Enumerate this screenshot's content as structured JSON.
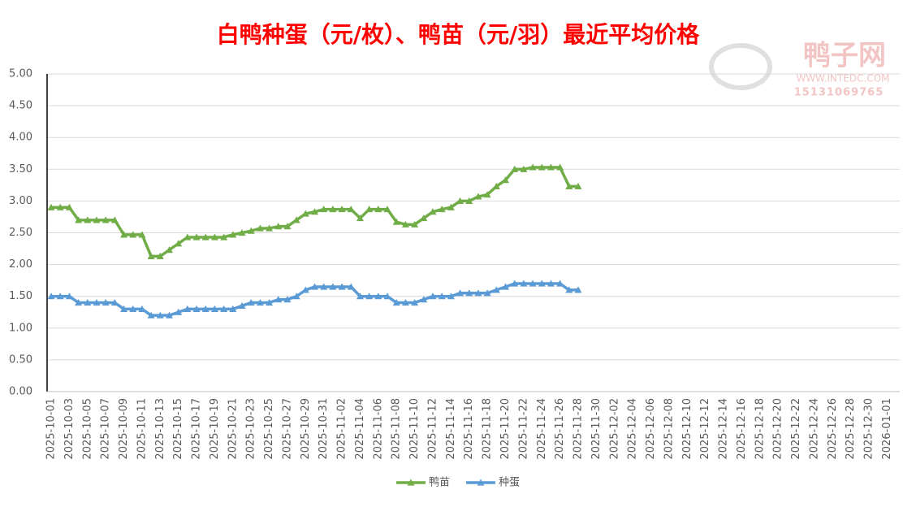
{
  "chart_data": {
    "type": "line",
    "title": "白鸭种蛋（元/枚）、鸭苗（元/羽）最近平均价格",
    "watermark": {
      "brand": "鸭子网",
      "site": "WWW.INTEDC.COM",
      "phone": "15131069765"
    },
    "categories": [
      "2025-10-01",
      null,
      "2025-10-03",
      null,
      "2025-10-05",
      null,
      "2025-10-07",
      null,
      "2025-10-09",
      null,
      "2025-10-11",
      null,
      "2025-10-13",
      null,
      "2025-10-15",
      null,
      "2025-10-17",
      null,
      "2025-10-19",
      null,
      "2025-10-21",
      null,
      "2025-10-23",
      null,
      "2025-10-25",
      null,
      "2025-10-27",
      null,
      "2025-10-29",
      null,
      "2025-10-31",
      null,
      "2025-11-02",
      null,
      "2025-11-04",
      null,
      "2025-11-06",
      null,
      "2025-11-08",
      null,
      "2025-11-10",
      null,
      "2025-11-12",
      null,
      "2025-11-14",
      null,
      "2025-11-16",
      null,
      "2025-11-18",
      null,
      "2025-11-20",
      null,
      "2025-11-22",
      null,
      "2025-11-24",
      null,
      "2025-11-26",
      null,
      "2025-11-28",
      null,
      "2025-11-30",
      null,
      "2025-12-02",
      null,
      "2025-12-04",
      null,
      "2025-12-06",
      null,
      "2025-12-08",
      null,
      "2025-12-10",
      null,
      "2025-12-12",
      null,
      "2025-12-14",
      null,
      "2025-12-16",
      null,
      "2025-12-18",
      null,
      "2025-12-20",
      null,
      "2025-12-22",
      null,
      "2025-12-24",
      null,
      "2025-12-26",
      null,
      "2025-12-28",
      null,
      "2025-12-30",
      null,
      "2026-01-01"
    ],
    "series": [
      {
        "name": "鸭苗",
        "color": "#70ad47",
        "values": [
          2.9,
          2.9,
          2.9,
          2.7,
          2.7,
          2.7,
          2.7,
          2.7,
          2.47,
          2.47,
          2.47,
          2.13,
          2.13,
          2.23,
          2.33,
          2.43,
          2.43,
          2.43,
          2.43,
          2.43,
          2.47,
          2.5,
          2.53,
          2.57,
          2.57,
          2.6,
          2.6,
          2.7,
          2.8,
          2.83,
          2.87,
          2.87,
          2.87,
          2.87,
          2.73,
          2.87,
          2.87,
          2.87,
          2.67,
          2.63,
          2.63,
          2.73,
          2.83,
          2.87,
          2.9,
          3.0,
          3.0,
          3.07,
          3.1,
          3.23,
          3.33,
          3.5,
          3.5,
          3.53,
          3.53,
          3.53,
          3.53,
          3.23,
          3.23,
          null,
          null,
          null,
          null,
          null,
          null,
          null,
          null,
          null,
          null,
          null,
          null,
          null,
          null,
          null,
          null,
          null,
          null,
          null,
          null,
          null,
          null,
          null,
          null,
          null,
          null,
          null,
          null,
          null,
          null,
          null,
          null,
          null,
          null
        ]
      },
      {
        "name": "种蛋",
        "color": "#5b9bd5",
        "values": [
          1.5,
          1.5,
          1.5,
          1.4,
          1.4,
          1.4,
          1.4,
          1.4,
          1.3,
          1.3,
          1.3,
          1.2,
          1.2,
          1.2,
          1.25,
          1.3,
          1.3,
          1.3,
          1.3,
          1.3,
          1.3,
          1.35,
          1.4,
          1.4,
          1.4,
          1.45,
          1.45,
          1.5,
          1.6,
          1.65,
          1.65,
          1.65,
          1.65,
          1.65,
          1.5,
          1.5,
          1.5,
          1.5,
          1.4,
          1.4,
          1.4,
          1.45,
          1.5,
          1.5,
          1.5,
          1.55,
          1.55,
          1.55,
          1.55,
          1.6,
          1.65,
          1.7,
          1.7,
          1.7,
          1.7,
          1.7,
          1.7,
          1.6,
          1.6,
          null,
          null,
          null,
          null,
          null,
          null,
          null,
          null,
          null,
          null,
          null,
          null,
          null,
          null,
          null,
          null,
          null,
          null,
          null,
          null,
          null,
          null,
          null,
          null,
          null,
          null,
          null,
          null,
          null,
          null,
          null,
          null,
          null,
          null
        ]
      }
    ],
    "ylim": [
      0,
      5
    ],
    "yticks": [
      {
        "value": 0,
        "label": "0.00"
      },
      {
        "value": 0.5,
        "label": "0.50"
      },
      {
        "value": 1,
        "label": "1.00"
      },
      {
        "value": 1.5,
        "label": "1.50"
      },
      {
        "value": 2,
        "label": "2.00"
      },
      {
        "value": 2.5,
        "label": "2.50"
      },
      {
        "value": 3,
        "label": "3.00"
      },
      {
        "value": 3.5,
        "label": "3.50"
      },
      {
        "value": 4,
        "label": "4.00"
      },
      {
        "value": 4.5,
        "label": "4.50"
      },
      {
        "value": 5,
        "label": "5.00"
      }
    ],
    "grid": true,
    "legend": "bottom"
  }
}
